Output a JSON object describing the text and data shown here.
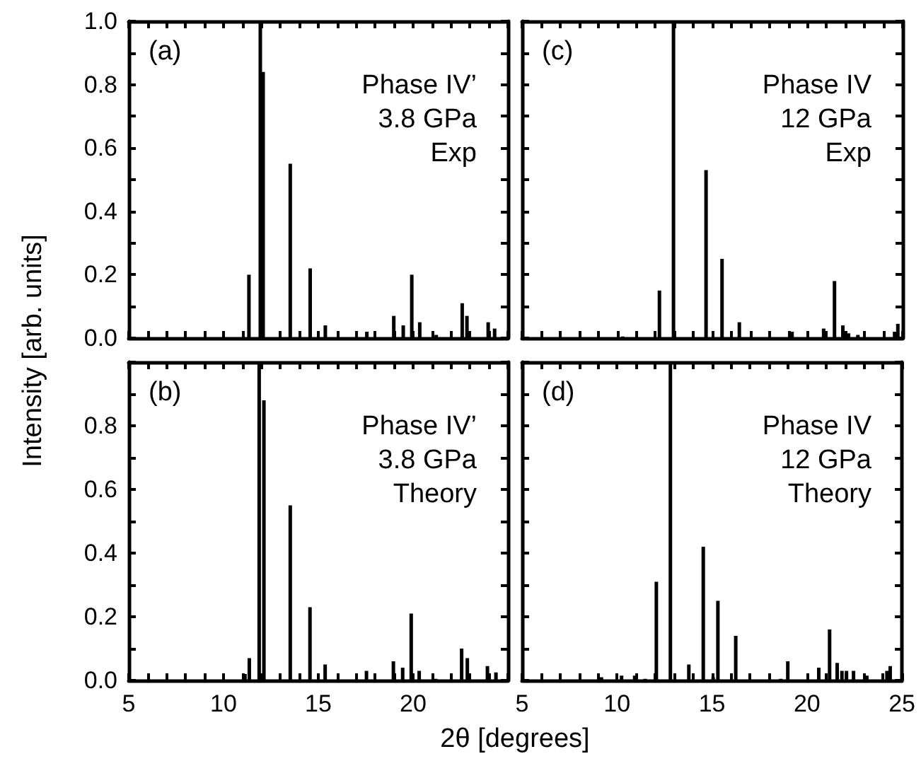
{
  "chart_data": [
    {
      "type": "bar",
      "annotations": [
        "(a)",
        "Phase IV’\n3.8 GPa\nExp"
      ],
      "ylabel": "Intensity [arb. units]",
      "tick_labels": "y",
      "color": "#000000",
      "x": [
        11.34,
        11.94,
        12.09,
        13.52,
        14.57,
        15.37,
        17.56,
        18.98,
        19.48,
        19.93,
        20.35,
        21.22,
        22.59,
        22.84,
        23.96,
        24.3
      ],
      "values": [
        0.2,
        1.0,
        0.84,
        0.55,
        0.22,
        0.04,
        0.02,
        0.07,
        0.04,
        0.2,
        0.05,
        0.01,
        0.11,
        0.07,
        0.05,
        0.03
      ],
      "xlim": [
        5,
        25
      ],
      "xticks": [
        {
          "value": 5,
          "label": null
        },
        {
          "value": 6,
          "label": null
        },
        {
          "value": 7,
          "label": null
        },
        {
          "value": 8,
          "label": null
        },
        {
          "value": 9,
          "label": null
        },
        {
          "value": 10,
          "label": null
        },
        {
          "value": 11,
          "label": null
        },
        {
          "value": 12,
          "label": null
        },
        {
          "value": 13,
          "label": null
        },
        {
          "value": 14,
          "label": null
        },
        {
          "value": 15,
          "label": null
        },
        {
          "value": 16,
          "label": null
        },
        {
          "value": 17,
          "label": null
        },
        {
          "value": 18,
          "label": null
        },
        {
          "value": 19,
          "label": null
        },
        {
          "value": 20,
          "label": null
        },
        {
          "value": 21,
          "label": null
        },
        {
          "value": 22,
          "label": null
        },
        {
          "value": 23,
          "label": null
        },
        {
          "value": 24,
          "label": null
        },
        {
          "value": 25,
          "label": null
        }
      ],
      "ylim": [
        0,
        1
      ],
      "yticks": [
        {
          "value": 0,
          "label": "0.0"
        },
        {
          "value": 0.1,
          "label": null
        },
        0.2,
        {
          "value": 0.3,
          "label": null
        },
        0.4,
        {
          "value": 0.5,
          "label": null
        },
        0.6,
        {
          "value": 0.7,
          "label": null
        },
        0.8,
        {
          "value": 0.9,
          "label": null
        },
        {
          "value": 1,
          "label": "1.0"
        }
      ]
    },
    {
      "type": "bar",
      "annotations": [
        "(c)",
        "Phase IV\n12 GPa\nExp"
      ],
      "tick_labels": false,
      "color": "#000000",
      "x": [
        10.29,
        12.22,
        12.96,
        14.67,
        15.51,
        16.42,
        19.19,
        20.85,
        21.42,
        21.86,
        22.16,
        22.65,
        24.58,
        24.75
      ],
      "values": [
        0.005,
        0.15,
        1.0,
        0.53,
        0.25,
        0.05,
        0.02,
        0.03,
        0.18,
        0.04,
        0.015,
        0.01,
        0.02,
        0.045
      ],
      "xlim": [
        5,
        25
      ],
      "xticks": [
        {
          "value": 5,
          "label": null
        },
        {
          "value": 6,
          "label": null
        },
        {
          "value": 7,
          "label": null
        },
        {
          "value": 8,
          "label": null
        },
        {
          "value": 9,
          "label": null
        },
        {
          "value": 10,
          "label": null
        },
        {
          "value": 11,
          "label": null
        },
        {
          "value": 12,
          "label": null
        },
        {
          "value": 13,
          "label": null
        },
        {
          "value": 14,
          "label": null
        },
        {
          "value": 15,
          "label": null
        },
        {
          "value": 16,
          "label": null
        },
        {
          "value": 17,
          "label": null
        },
        {
          "value": 18,
          "label": null
        },
        {
          "value": 19,
          "label": null
        },
        {
          "value": 20,
          "label": null
        },
        {
          "value": 21,
          "label": null
        },
        {
          "value": 22,
          "label": null
        },
        {
          "value": 23,
          "label": null
        },
        {
          "value": 24,
          "label": null
        },
        {
          "value": 25,
          "label": null
        }
      ],
      "ylim": [
        0,
        1
      ],
      "yticks": [
        {
          "value": 0,
          "label": null
        },
        {
          "value": 0.1,
          "label": null
        },
        {
          "value": 0.2,
          "label": null
        },
        {
          "value": 0.3,
          "label": null
        },
        {
          "value": 0.4,
          "label": null
        },
        {
          "value": 0.5,
          "label": null
        },
        {
          "value": 0.6,
          "label": null
        },
        {
          "value": 0.7,
          "label": null
        },
        {
          "value": 0.8,
          "label": null
        },
        {
          "value": 0.9,
          "label": null
        },
        {
          "value": 1,
          "label": null
        }
      ]
    },
    {
      "type": "bar",
      "annotations": [
        "(b)",
        "Phase IV’\n3.8 GPa\nTheory"
      ],
      "xlabel": "2θ [degrees]",
      "color": "#000000",
      "x": [
        11.13,
        11.36,
        11.88,
        12.13,
        13.52,
        14.56,
        15.36,
        17.54,
        18.96,
        19.45,
        19.9,
        20.32,
        21.19,
        22.56,
        22.86,
        23.92,
        24.37
      ],
      "values": [
        0.02,
        0.07,
        1.0,
        0.88,
        0.55,
        0.23,
        0.05,
        0.03,
        0.06,
        0.04,
        0.21,
        0.03,
        0.005,
        0.1,
        0.07,
        0.045,
        0.025
      ],
      "xlim": [
        5,
        25
      ],
      "xticks": [
        5,
        {
          "value": 6,
          "label": null
        },
        {
          "value": 7,
          "label": null
        },
        {
          "value": 8,
          "label": null
        },
        {
          "value": 9,
          "label": null
        },
        10,
        {
          "value": 11,
          "label": null
        },
        {
          "value": 12,
          "label": null
        },
        {
          "value": 13,
          "label": null
        },
        {
          "value": 14,
          "label": null
        },
        15,
        {
          "value": 16,
          "label": null
        },
        {
          "value": 17,
          "label": null
        },
        {
          "value": 18,
          "label": null
        },
        {
          "value": 19,
          "label": null
        },
        20,
        {
          "value": 21,
          "label": null
        },
        {
          "value": 22,
          "label": null
        },
        {
          "value": 23,
          "label": null
        },
        {
          "value": 24,
          "label": null
        },
        {
          "value": 25,
          "label": null
        }
      ],
      "ylim": [
        0,
        1
      ],
      "yticks": [
        {
          "value": 0,
          "label": "0.0"
        },
        {
          "value": 0.1,
          "label": null
        },
        0.2,
        {
          "value": 0.3,
          "label": null
        },
        0.4,
        {
          "value": 0.5,
          "label": null
        },
        0.6,
        {
          "value": 0.7,
          "label": null
        },
        0.8,
        {
          "value": 0.9,
          "label": null
        },
        {
          "value": 1,
          "label": null
        }
      ]
    },
    {
      "type": "bar",
      "annotations": [
        "(d)",
        "Phase IV\n12 GPa\nTheory"
      ],
      "tick_labels": "x",
      "color": "#000000",
      "x": [
        9.18,
        10.24,
        10.93,
        11.48,
        12.07,
        12.81,
        13.78,
        14.54,
        15.06,
        15.31,
        16.25,
        18.62,
        18.99,
        20.62,
        21.19,
        21.59,
        21.84,
        22.08,
        22.45,
        23.15,
        24.21,
        24.38
      ],
      "values": [
        0.01,
        0.015,
        0.015,
        0.005,
        0.31,
        1.0,
        0.05,
        0.42,
        0.01,
        0.25,
        0.14,
        0.005,
        0.06,
        0.04,
        0.16,
        0.055,
        0.03,
        0.03,
        0.03,
        0.015,
        0.03,
        0.045
      ],
      "xlim": [
        5,
        25
      ],
      "xticks": [
        5,
        {
          "value": 6,
          "label": null
        },
        {
          "value": 7,
          "label": null
        },
        {
          "value": 8,
          "label": null
        },
        {
          "value": 9,
          "label": null
        },
        10,
        {
          "value": 11,
          "label": null
        },
        {
          "value": 12,
          "label": null
        },
        {
          "value": 13,
          "label": null
        },
        {
          "value": 14,
          "label": null
        },
        15,
        {
          "value": 16,
          "label": null
        },
        {
          "value": 17,
          "label": null
        },
        {
          "value": 18,
          "label": null
        },
        {
          "value": 19,
          "label": null
        },
        20,
        {
          "value": 21,
          "label": null
        },
        {
          "value": 22,
          "label": null
        },
        {
          "value": 23,
          "label": null
        },
        {
          "value": 24,
          "label": null
        },
        25
      ],
      "ylim": [
        0,
        1
      ],
      "yticks": [
        {
          "value": 0,
          "label": null
        },
        {
          "value": 0.1,
          "label": null
        },
        {
          "value": 0.2,
          "label": null
        },
        {
          "value": 0.3,
          "label": null
        },
        {
          "value": 0.4,
          "label": null
        },
        {
          "value": 0.5,
          "label": null
        },
        {
          "value": 0.6,
          "label": null
        },
        {
          "value": 0.7,
          "label": null
        },
        {
          "value": 0.8,
          "label": null
        },
        {
          "value": 0.9,
          "label": null
        },
        {
          "value": 1,
          "label": null
        }
      ]
    }
  ]
}
